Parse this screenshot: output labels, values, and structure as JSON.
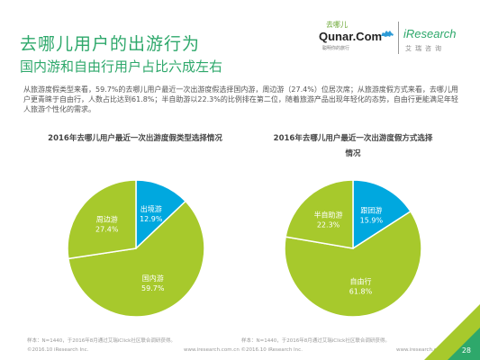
{
  "header": {
    "title": "去哪儿用户的出游行为",
    "subtitle": "国内游和自由行用户占比六成左右"
  },
  "brand": {
    "qunar_cn": "去哪儿",
    "qunar_en": "Qunar.Com",
    "qunar_tagline": "聪明你的旅行",
    "ir_en": "iResearch",
    "ir_cn": "艾瑞咨询"
  },
  "summary": "从旅游度假类型来看，59.7%的去哪儿用户最近一次出游度假选择国内游，周边游（27.4%）位居次席；从旅游度假方式来看，去哪儿用户更青睐于自由行，人数占比达到61.8%；半自助游以22.3%的比例排在第二位，随着旅游产品出现年轻化的态势，自由行更能满足年轻人旅游个性化的需求。",
  "colors": {
    "green": "#a7c92c",
    "cyan": "#00a8df",
    "accent": "#2ea86b"
  },
  "chart_data": [
    {
      "type": "pie",
      "title": "2016年去哪儿用户最近一次出游度假类型选择情况",
      "slices": [
        {
          "name": "出境游",
          "value": 12.9,
          "label": "12.9%",
          "color": "#00a8df"
        },
        {
          "name": "国内游",
          "value": 59.7,
          "label": "59.7%",
          "color": "#a7c92c"
        },
        {
          "name": "周边游",
          "value": 27.4,
          "label": "27.4%",
          "color": "#a7c92c"
        }
      ]
    },
    {
      "type": "pie",
      "title": "2016年去哪儿用户最近一次出游度假方式选择情况",
      "slices": [
        {
          "name": "跟团游",
          "value": 15.9,
          "label": "15.9%",
          "color": "#00a8df"
        },
        {
          "name": "自由行",
          "value": 61.8,
          "label": "61.8%",
          "color": "#a7c92c"
        },
        {
          "name": "半自助游",
          "value": 22.3,
          "label": "22.3%",
          "color": "#a7c92c"
        }
      ]
    }
  ],
  "footer": {
    "note_left": "样本：N=1440，于2016年8月通过艾瑞iClick社区联合调研获得。",
    "note_right": "样本：N=1440，于2016年8月通过艾瑞iClick社区联合调研获得。",
    "copy_left": "©2016.10 iResearch Inc.",
    "copy_mid": "www.iresearch.com.cn ©2016.10 iResearch Inc.",
    "copy_right": "www.iresearch.com.cn",
    "page": "28"
  }
}
